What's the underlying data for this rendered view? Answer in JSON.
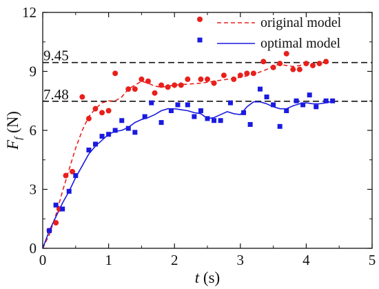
{
  "chart_data": {
    "type": "scatter",
    "xlabel": "t (s)",
    "ylabel": "F_f (N)",
    "xlim": [
      0,
      5
    ],
    "ylim": [
      0,
      12
    ],
    "xticks": [
      0,
      1,
      2,
      3,
      4,
      5
    ],
    "yticks": [
      0,
      3,
      6,
      9,
      12
    ],
    "legend_position": "top-right",
    "reference_lines": [
      {
        "value": 9.45,
        "label": "9.45"
      },
      {
        "value": 7.48,
        "label": "7.48"
      }
    ],
    "series": [
      {
        "name": "original model",
        "color": "#e8201c",
        "marker": "circle",
        "line_style": "dashed",
        "points": [
          [
            0.1,
            0.9
          ],
          [
            0.2,
            1.3
          ],
          [
            0.25,
            2.0
          ],
          [
            0.35,
            3.7
          ],
          [
            0.45,
            3.9
          ],
          [
            0.6,
            7.7
          ],
          [
            0.7,
            6.6
          ],
          [
            0.8,
            7.1
          ],
          [
            0.9,
            6.9
          ],
          [
            1.0,
            7.0
          ],
          [
            1.1,
            8.9
          ],
          [
            1.3,
            8.1
          ],
          [
            1.4,
            8.1
          ],
          [
            1.5,
            8.6
          ],
          [
            1.6,
            8.5
          ],
          [
            1.7,
            7.9
          ],
          [
            1.8,
            8.3
          ],
          [
            1.9,
            8.2
          ],
          [
            2.0,
            8.3
          ],
          [
            2.1,
            8.3
          ],
          [
            2.2,
            8.6
          ],
          [
            2.4,
            8.6
          ],
          [
            2.5,
            8.6
          ],
          [
            2.6,
            8.4
          ],
          [
            2.75,
            8.8
          ],
          [
            2.9,
            8.6
          ],
          [
            3.0,
            8.8
          ],
          [
            3.1,
            8.9
          ],
          [
            3.2,
            8.9
          ],
          [
            3.35,
            9.5
          ],
          [
            3.5,
            9.2
          ],
          [
            3.6,
            9.4
          ],
          [
            3.7,
            9.9
          ],
          [
            3.8,
            9.1
          ],
          [
            3.9,
            9.1
          ],
          [
            4.0,
            9.4
          ],
          [
            4.1,
            9.3
          ],
          [
            4.2,
            9.4
          ],
          [
            4.3,
            9.5
          ]
        ],
        "curve": [
          [
            0,
            0
          ],
          [
            0.1,
            0.7
          ],
          [
            0.2,
            1.7
          ],
          [
            0.3,
            2.9
          ],
          [
            0.4,
            4.0
          ],
          [
            0.5,
            5.1
          ],
          [
            0.6,
            6.0
          ],
          [
            0.7,
            6.7
          ],
          [
            0.8,
            7.1
          ],
          [
            0.9,
            7.4
          ],
          [
            1.0,
            7.5
          ],
          [
            1.1,
            7.5
          ],
          [
            1.2,
            7.7
          ],
          [
            1.3,
            8.1
          ],
          [
            1.4,
            8.3
          ],
          [
            1.5,
            8.5
          ],
          [
            1.6,
            8.4
          ],
          [
            1.7,
            8.25
          ],
          [
            1.8,
            8.2
          ],
          [
            1.9,
            8.25
          ],
          [
            2.0,
            8.3
          ],
          [
            2.2,
            8.35
          ],
          [
            2.4,
            8.4
          ],
          [
            2.6,
            8.5
          ],
          [
            2.8,
            8.6
          ],
          [
            3.0,
            8.7
          ],
          [
            3.2,
            8.85
          ],
          [
            3.4,
            9.1
          ],
          [
            3.5,
            9.3
          ],
          [
            3.6,
            9.35
          ],
          [
            3.7,
            9.3
          ],
          [
            3.8,
            9.25
          ],
          [
            3.9,
            9.3
          ],
          [
            4.0,
            9.35
          ],
          [
            4.1,
            9.35
          ],
          [
            4.2,
            9.4
          ],
          [
            4.3,
            9.45
          ]
        ]
      },
      {
        "name": "optimal model",
        "color": "#1a1ae0",
        "marker": "square",
        "line_style": "solid",
        "points": [
          [
            0.1,
            0.9
          ],
          [
            0.2,
            2.2
          ],
          [
            0.3,
            2.0
          ],
          [
            0.4,
            2.9
          ],
          [
            0.5,
            3.7
          ],
          [
            0.7,
            5.0
          ],
          [
            0.8,
            5.3
          ],
          [
            0.9,
            5.7
          ],
          [
            1.0,
            5.8
          ],
          [
            1.1,
            6.0
          ],
          [
            1.2,
            6.5
          ],
          [
            1.3,
            6.1
          ],
          [
            1.4,
            5.9
          ],
          [
            1.55,
            6.7
          ],
          [
            1.65,
            7.4
          ],
          [
            1.8,
            6.4
          ],
          [
            1.95,
            7.0
          ],
          [
            2.05,
            7.3
          ],
          [
            2.2,
            7.3
          ],
          [
            2.3,
            6.7
          ],
          [
            2.4,
            7.0
          ],
          [
            2.5,
            6.6
          ],
          [
            2.6,
            6.5
          ],
          [
            2.7,
            6.5
          ],
          [
            2.85,
            7.4
          ],
          [
            3.05,
            6.9
          ],
          [
            3.15,
            6.3
          ],
          [
            3.3,
            8.1
          ],
          [
            3.4,
            7.7
          ],
          [
            3.5,
            7.3
          ],
          [
            3.6,
            6.2
          ],
          [
            3.7,
            7.0
          ],
          [
            3.85,
            7.5
          ],
          [
            3.95,
            7.3
          ],
          [
            4.05,
            7.8
          ],
          [
            4.15,
            7.2
          ],
          [
            4.3,
            7.5
          ],
          [
            4.4,
            7.5
          ]
        ],
        "curve": [
          [
            0,
            0
          ],
          [
            0.1,
            0.9
          ],
          [
            0.2,
            1.6
          ],
          [
            0.3,
            2.3
          ],
          [
            0.4,
            2.9
          ],
          [
            0.5,
            3.6
          ],
          [
            0.6,
            4.2
          ],
          [
            0.7,
            4.8
          ],
          [
            0.8,
            5.2
          ],
          [
            0.9,
            5.5
          ],
          [
            1.0,
            5.8
          ],
          [
            1.1,
            5.95
          ],
          [
            1.2,
            6.0
          ],
          [
            1.3,
            6.15
          ],
          [
            1.4,
            6.4
          ],
          [
            1.5,
            6.55
          ],
          [
            1.6,
            6.65
          ],
          [
            1.7,
            6.8
          ],
          [
            1.8,
            7.0
          ],
          [
            1.9,
            7.1
          ],
          [
            2.0,
            7.1
          ],
          [
            2.1,
            7.05
          ],
          [
            2.2,
            7.0
          ],
          [
            2.3,
            6.9
          ],
          [
            2.4,
            6.85
          ],
          [
            2.5,
            6.6
          ],
          [
            2.6,
            6.65
          ],
          [
            2.7,
            6.8
          ],
          [
            2.8,
            6.95
          ],
          [
            2.9,
            6.85
          ],
          [
            3.0,
            6.8
          ],
          [
            3.1,
            7.2
          ],
          [
            3.2,
            7.45
          ],
          [
            3.3,
            7.45
          ],
          [
            3.4,
            7.35
          ],
          [
            3.5,
            7.2
          ],
          [
            3.6,
            7.1
          ],
          [
            3.7,
            7.1
          ],
          [
            3.8,
            7.25
          ],
          [
            3.9,
            7.35
          ],
          [
            4.0,
            7.4
          ],
          [
            4.1,
            7.35
          ],
          [
            4.2,
            7.35
          ],
          [
            4.3,
            7.4
          ],
          [
            4.4,
            7.48
          ]
        ]
      }
    ]
  }
}
